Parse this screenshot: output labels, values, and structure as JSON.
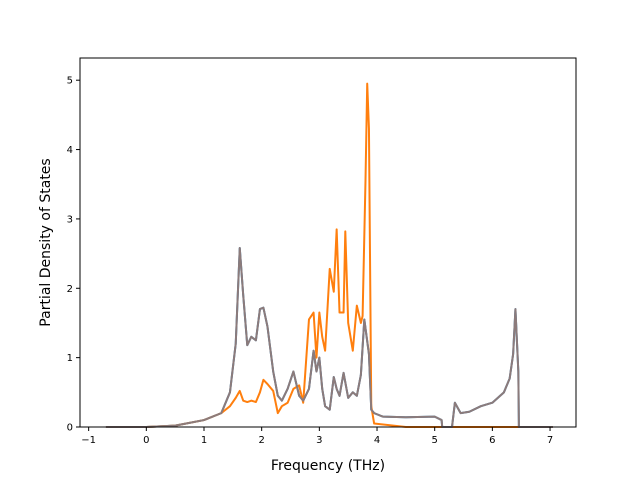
{
  "chart_data": {
    "type": "line",
    "title": "",
    "xlabel": "Frequency (THz)",
    "ylabel": "Partial Density of States",
    "xlim": [
      -1.15,
      7.45
    ],
    "ylim": [
      0,
      5.32
    ],
    "xticks": [
      "−1",
      "0",
      "1",
      "2",
      "3",
      "4",
      "5",
      "6",
      "7"
    ],
    "yticks": [
      "0",
      "1",
      "2",
      "3",
      "4",
      "5"
    ],
    "grid": false,
    "legend": "none",
    "series": [
      {
        "color": "#1f77b4",
        "x": [
          -0.7,
          0,
          0.5,
          1,
          1.3,
          1.45,
          1.55,
          1.62,
          1.68,
          1.75,
          1.82,
          1.9,
          1.97,
          2.03,
          2.1,
          2.2,
          2.28,
          2.35,
          2.45,
          2.55,
          2.65,
          2.72,
          2.82,
          2.9,
          2.95,
          3.0,
          3.05,
          3.1,
          3.18,
          3.25,
          3.3,
          3.35,
          3.42,
          3.5,
          3.58,
          3.65,
          3.72,
          3.78,
          3.82,
          3.86,
          3.9,
          3.95,
          4.1,
          4.5,
          5.0,
          5.12,
          5.13,
          5.3,
          5.35,
          5.45,
          5.6,
          5.8,
          6.0,
          6.2,
          6.3,
          6.36,
          6.4,
          6.45,
          6.46,
          7.05
        ],
        "y": [
          0,
          0,
          0.02,
          0.1,
          0.2,
          0.5,
          1.2,
          2.58,
          1.9,
          1.18,
          1.3,
          1.25,
          1.7,
          1.72,
          1.45,
          0.8,
          0.45,
          0.38,
          0.55,
          0.8,
          0.45,
          0.38,
          0.55,
          1.1,
          0.8,
          1.0,
          0.55,
          0.3,
          0.25,
          0.72,
          0.55,
          0.45,
          0.78,
          0.42,
          0.5,
          0.45,
          0.75,
          1.55,
          1.3,
          1.05,
          0.25,
          0.2,
          0.15,
          0.14,
          0.15,
          0.1,
          0,
          0,
          0.35,
          0.2,
          0.22,
          0.3,
          0.35,
          0.5,
          0.7,
          1.05,
          1.7,
          0.8,
          0,
          0
        ]
      },
      {
        "color": "#ff7f0e",
        "x": [
          -0.7,
          0,
          0.5,
          1,
          1.3,
          1.45,
          1.55,
          1.62,
          1.68,
          1.75,
          1.82,
          1.9,
          1.97,
          2.03,
          2.1,
          2.2,
          2.28,
          2.35,
          2.45,
          2.55,
          2.65,
          2.72,
          2.82,
          2.9,
          2.95,
          3.0,
          3.05,
          3.1,
          3.18,
          3.25,
          3.3,
          3.35,
          3.42,
          3.45,
          3.5,
          3.58,
          3.65,
          3.72,
          3.75,
          3.8,
          3.83,
          3.86,
          3.9,
          3.95,
          4.5,
          7.05
        ],
        "y": [
          0,
          0,
          0.02,
          0.1,
          0.2,
          0.3,
          0.42,
          0.52,
          0.38,
          0.36,
          0.38,
          0.36,
          0.5,
          0.68,
          0.62,
          0.52,
          0.2,
          0.3,
          0.35,
          0.55,
          0.6,
          0.35,
          1.55,
          1.65,
          1.0,
          1.65,
          1.3,
          1.1,
          2.28,
          1.95,
          2.85,
          1.65,
          1.65,
          2.82,
          1.5,
          1.1,
          1.75,
          1.5,
          1.6,
          3.55,
          4.95,
          4.3,
          0.3,
          0.05,
          0,
          0
        ]
      },
      {
        "color": "#8c7b7b",
        "x": [
          -0.7,
          0,
          0.5,
          1,
          1.3,
          1.45,
          1.55,
          1.62,
          1.68,
          1.75,
          1.82,
          1.9,
          1.97,
          2.03,
          2.1,
          2.2,
          2.28,
          2.35,
          2.45,
          2.55,
          2.65,
          2.72,
          2.82,
          2.9,
          2.95,
          3.0,
          3.05,
          3.1,
          3.18,
          3.25,
          3.3,
          3.35,
          3.42,
          3.5,
          3.58,
          3.65,
          3.72,
          3.78,
          3.82,
          3.86,
          3.9,
          3.95,
          4.1,
          4.5,
          5.0,
          5.12,
          5.13,
          5.3,
          5.35,
          5.45,
          5.6,
          5.8,
          6.0,
          6.2,
          6.3,
          6.36,
          6.4,
          6.45,
          6.46,
          7.05
        ],
        "y": [
          0,
          0,
          0.02,
          0.1,
          0.2,
          0.5,
          1.2,
          2.58,
          1.9,
          1.18,
          1.3,
          1.25,
          1.7,
          1.72,
          1.45,
          0.8,
          0.45,
          0.38,
          0.55,
          0.8,
          0.45,
          0.38,
          0.55,
          1.1,
          0.8,
          1.0,
          0.55,
          0.3,
          0.25,
          0.72,
          0.55,
          0.45,
          0.78,
          0.42,
          0.5,
          0.45,
          0.75,
          1.55,
          1.3,
          1.05,
          0.25,
          0.2,
          0.15,
          0.14,
          0.15,
          0.1,
          0,
          0,
          0.35,
          0.2,
          0.22,
          0.3,
          0.35,
          0.5,
          0.7,
          1.05,
          1.7,
          0.8,
          0,
          0
        ]
      }
    ]
  }
}
